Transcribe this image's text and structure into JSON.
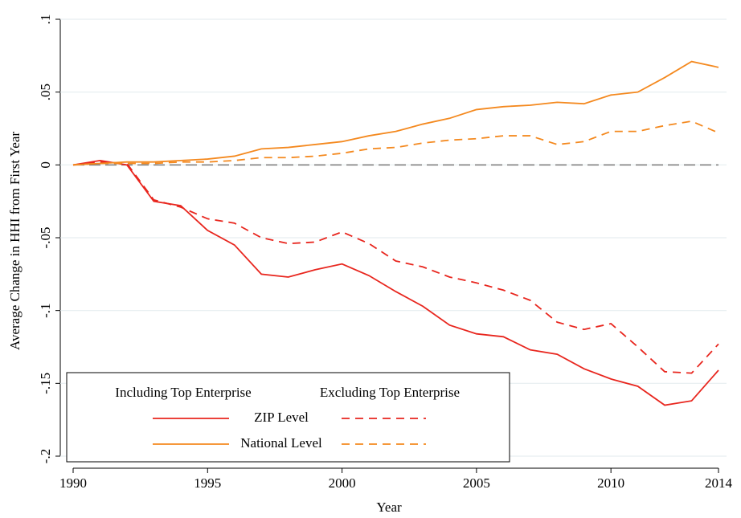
{
  "chart_data": {
    "type": "line",
    "x_label": "Year",
    "y_label": "Average Change in HHI from First Year",
    "x": [
      1990,
      1991,
      1992,
      1993,
      1994,
      1995,
      1996,
      1997,
      1998,
      1999,
      2000,
      2001,
      2002,
      2003,
      2004,
      2005,
      2006,
      2007,
      2008,
      2009,
      2010,
      2011,
      2012,
      2013,
      2014
    ],
    "xlim": [
      1990,
      2014
    ],
    "xticks": [
      1990,
      1995,
      2000,
      2005,
      2010,
      2014
    ],
    "ylim": [
      -0.2,
      0.1
    ],
    "yticks": [
      {
        "value": -0.2,
        "label": "-.2"
      },
      {
        "value": -0.15,
        "label": "-.15"
      },
      {
        "value": -0.1,
        "label": "-.1"
      },
      {
        "value": -0.05,
        "label": "-.05"
      },
      {
        "value": 0,
        "label": "0"
      },
      {
        "value": 0.05,
        "label": ".05"
      },
      {
        "value": 0.1,
        "label": ".1"
      }
    ],
    "grid": true,
    "reference_line": 0,
    "legend_columns": [
      "Including Top Enterprise",
      "Excluding Top Enterprise"
    ],
    "series": [
      {
        "name": "ZIP Level",
        "color": "#e8261e",
        "lines": [
          {
            "values": [
              0,
              0.003,
              0,
              -0.025,
              -0.028,
              -0.045,
              -0.055,
              -0.075,
              -0.077,
              -0.072,
              -0.068,
              -0.076,
              -0.087,
              -0.097,
              -0.11,
              -0.116,
              -0.118,
              -0.127,
              -0.13,
              -0.14,
              -0.147,
              -0.152,
              -0.165,
              -0.162,
              -0.141
            ]
          },
          {
            "values": [
              0,
              0.002,
              0.001,
              -0.024,
              -0.029,
              -0.037,
              -0.04,
              -0.05,
              -0.054,
              -0.053,
              -0.046,
              -0.054,
              -0.066,
              -0.07,
              -0.077,
              -0.081,
              -0.086,
              -0.093,
              -0.108,
              -0.113,
              -0.109,
              -0.125,
              -0.142,
              -0.143,
              -0.123
            ]
          }
        ]
      },
      {
        "name": "National Level",
        "color": "#f4891f",
        "lines": [
          {
            "values": [
              0,
              0.001,
              0.002,
              0.002,
              0.003,
              0.004,
              0.006,
              0.011,
              0.012,
              0.014,
              0.016,
              0.02,
              0.023,
              0.028,
              0.032,
              0.038,
              0.04,
              0.041,
              0.043,
              0.042,
              0.048,
              0.05,
              0.06,
              0.071,
              0.067
            ]
          },
          {
            "values": [
              0,
              0.001,
              0.001,
              0.001,
              0.002,
              0.002,
              0.003,
              0.005,
              0.005,
              0.006,
              0.008,
              0.011,
              0.012,
              0.015,
              0.017,
              0.018,
              0.02,
              0.02,
              0.014,
              0.016,
              0.023,
              0.023,
              0.027,
              0.03,
              0.022
            ]
          }
        ]
      }
    ]
  }
}
